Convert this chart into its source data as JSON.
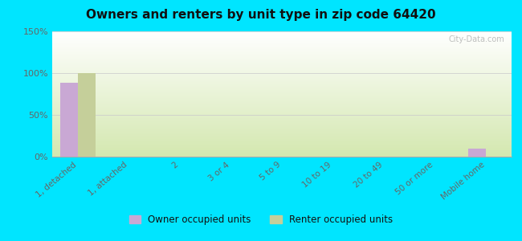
{
  "title": "Owners and renters by unit type in zip code 64420",
  "categories": [
    "1, detached",
    "1, attached",
    "2",
    "3 or 4",
    "5 to 9",
    "10 to 19",
    "20 to 49",
    "50 or more",
    "Mobile home"
  ],
  "owner_values": [
    88,
    0,
    0,
    0,
    0,
    0,
    0,
    0,
    10
  ],
  "renter_values": [
    100,
    0,
    0,
    0,
    0,
    0,
    0,
    0,
    0
  ],
  "owner_color": "#c9a8d4",
  "renter_color": "#c5cf9a",
  "ylim": [
    0,
    150
  ],
  "yticks": [
    0,
    50,
    100,
    150
  ],
  "ytick_labels": [
    "0%",
    "50%",
    "100%",
    "150%"
  ],
  "bar_width": 0.35,
  "outer_color": "#00e5ff",
  "legend_owner": "Owner occupied units",
  "legend_renter": "Renter occupied units",
  "watermark": "City-Data.com",
  "title_color": "#1a1a2e",
  "tick_color": "#666666",
  "grid_color": "#cccccc"
}
